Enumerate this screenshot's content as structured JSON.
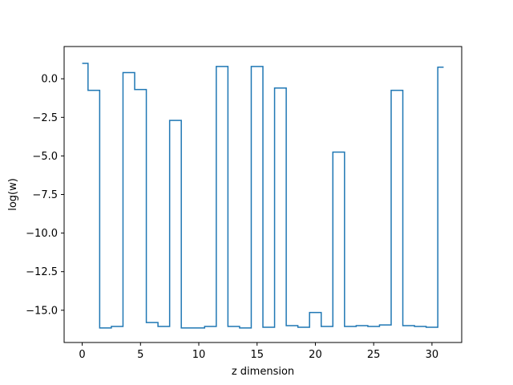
{
  "chart_data": {
    "type": "line",
    "drawstyle": "steps-mid",
    "xlabel": "z dimension",
    "ylabel": "log(w)",
    "xlim": [
      -1.55,
      32.55
    ],
    "ylim": [
      -17.09,
      2.09
    ],
    "xticks": [
      0,
      5,
      10,
      15,
      20,
      25,
      30
    ],
    "yticks": [
      0.0,
      -2.5,
      -5.0,
      -7.5,
      -10.0,
      -12.5,
      -15.0
    ],
    "xtick_labels": [
      "0",
      "5",
      "10",
      "15",
      "20",
      "25",
      "30"
    ],
    "ytick_labels": [
      "0.0",
      "−2.5",
      "−5.0",
      "−7.5",
      "−10.0",
      "−12.5",
      "−15.0"
    ],
    "grid": false,
    "series": [
      {
        "color": "#1f77b4",
        "x": [
          0,
          1,
          2,
          3,
          4,
          5,
          6,
          7,
          8,
          9,
          10,
          11,
          12,
          13,
          14,
          15,
          16,
          17,
          18,
          19,
          20,
          21,
          22,
          23,
          24,
          25,
          26,
          27,
          28,
          29,
          30,
          31
        ],
        "y": [
          1.0,
          -0.75,
          -16.15,
          -16.05,
          0.4,
          -0.7,
          -15.8,
          -16.05,
          -2.7,
          -16.15,
          -16.15,
          -16.05,
          0.8,
          -16.05,
          -16.15,
          0.8,
          -16.1,
          -0.6,
          -16.0,
          -16.1,
          -15.15,
          -16.05,
          -4.75,
          -16.05,
          -16.0,
          -16.05,
          -15.95,
          -0.75,
          -16.0,
          -16.05,
          -16.1,
          0.75
        ]
      }
    ]
  }
}
